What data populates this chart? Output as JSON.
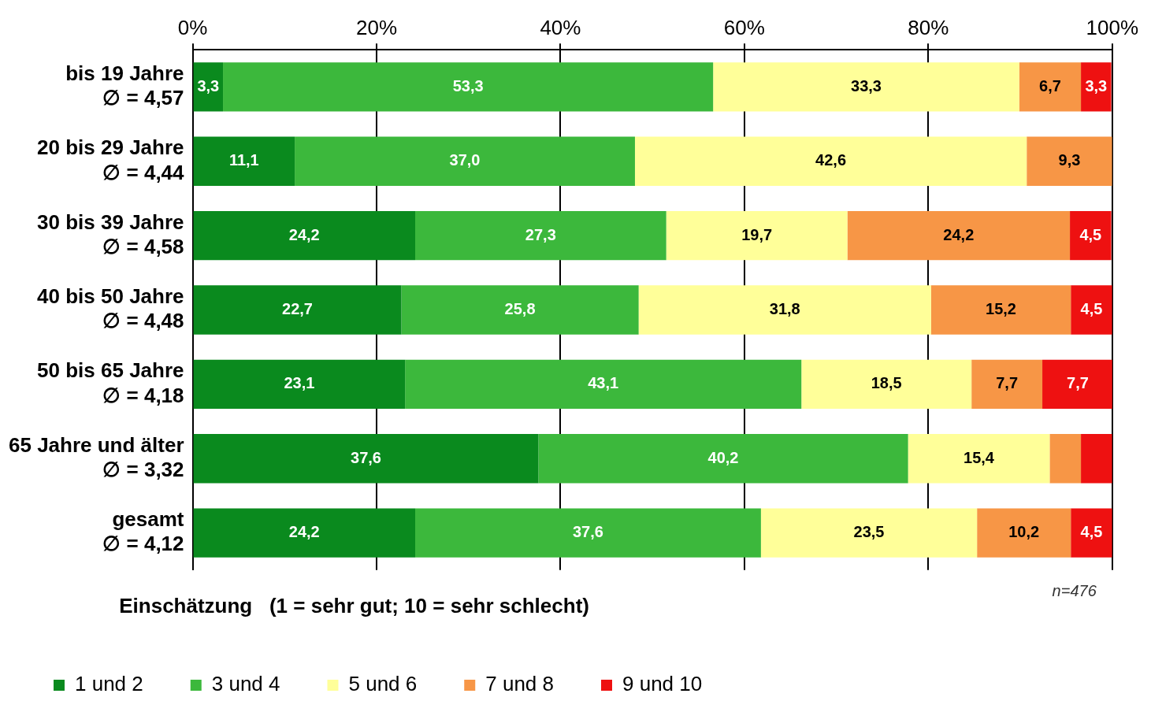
{
  "chart_data": {
    "type": "bar",
    "orientation": "horizontal",
    "stacked": true,
    "categories": [
      "bis 19 Jahre\n∅ = 4,57",
      "20 bis 29 Jahre\n∅ = 4,44",
      "30 bis 39 Jahre\n∅ = 4,58",
      "40 bis 50 Jahre\n∅ = 4,48",
      "50 bis 65 Jahre\n∅ = 4,18",
      "65 Jahre und älter\n∅ = 3,32",
      "gesamt\n∅ = 4,12"
    ],
    "series": [
      {
        "name": "1 und 2",
        "color": "#0a8a1e",
        "values": [
          3.3,
          11.1,
          24.2,
          22.7,
          23.1,
          37.6,
          24.2
        ],
        "value_labels": [
          "3,3",
          "11,1",
          "24,2",
          "22,7",
          "23,1",
          "37,6",
          "24,2"
        ]
      },
      {
        "name": "3 und 4",
        "color": "#3cb83c",
        "values": [
          53.3,
          37.0,
          27.3,
          25.8,
          43.1,
          40.2,
          37.6
        ],
        "value_labels": [
          "53,3",
          "37,0",
          "27,3",
          "25,8",
          "43,1",
          "40,2",
          "37,6"
        ]
      },
      {
        "name": "5 und 6",
        "color": "#ffff99",
        "values": [
          33.3,
          42.6,
          19.7,
          31.8,
          18.5,
          15.4,
          23.5
        ],
        "value_labels": [
          "33,3",
          "42,6",
          "19,7",
          "31,8",
          "18,5",
          "15,4",
          "23,5"
        ]
      },
      {
        "name": "7 und 8",
        "color": "#f79646",
        "values": [
          6.7,
          9.3,
          24.2,
          15.2,
          7.7,
          3.4,
          10.2
        ],
        "value_labels": [
          "6,7",
          "9,3",
          "24,2",
          "15,2",
          "7,7",
          null,
          "10,2"
        ]
      },
      {
        "name": "9 und 10",
        "color": "#ee1111",
        "values": [
          3.3,
          null,
          4.5,
          4.5,
          7.7,
          3.4,
          4.5
        ],
        "value_labels": [
          "3,3",
          null,
          "4,5",
          "4,5",
          "7,7",
          null,
          "4,5"
        ]
      }
    ],
    "xlim": [
      0,
      100
    ],
    "xticks": [
      {
        "value": 0,
        "label": "0%"
      },
      {
        "value": 20,
        "label": "20%"
      },
      {
        "value": 40,
        "label": "40%"
      },
      {
        "value": 60,
        "label": "60%"
      },
      {
        "value": 80,
        "label": "80%"
      },
      {
        "value": 100,
        "label": "100%"
      }
    ],
    "grid": "x",
    "legend": "bottom",
    "legend_title": "Einschätzung   (1 = sehr gut; 10 = sehr schlecht)",
    "annotations": [
      "n=476"
    ]
  }
}
